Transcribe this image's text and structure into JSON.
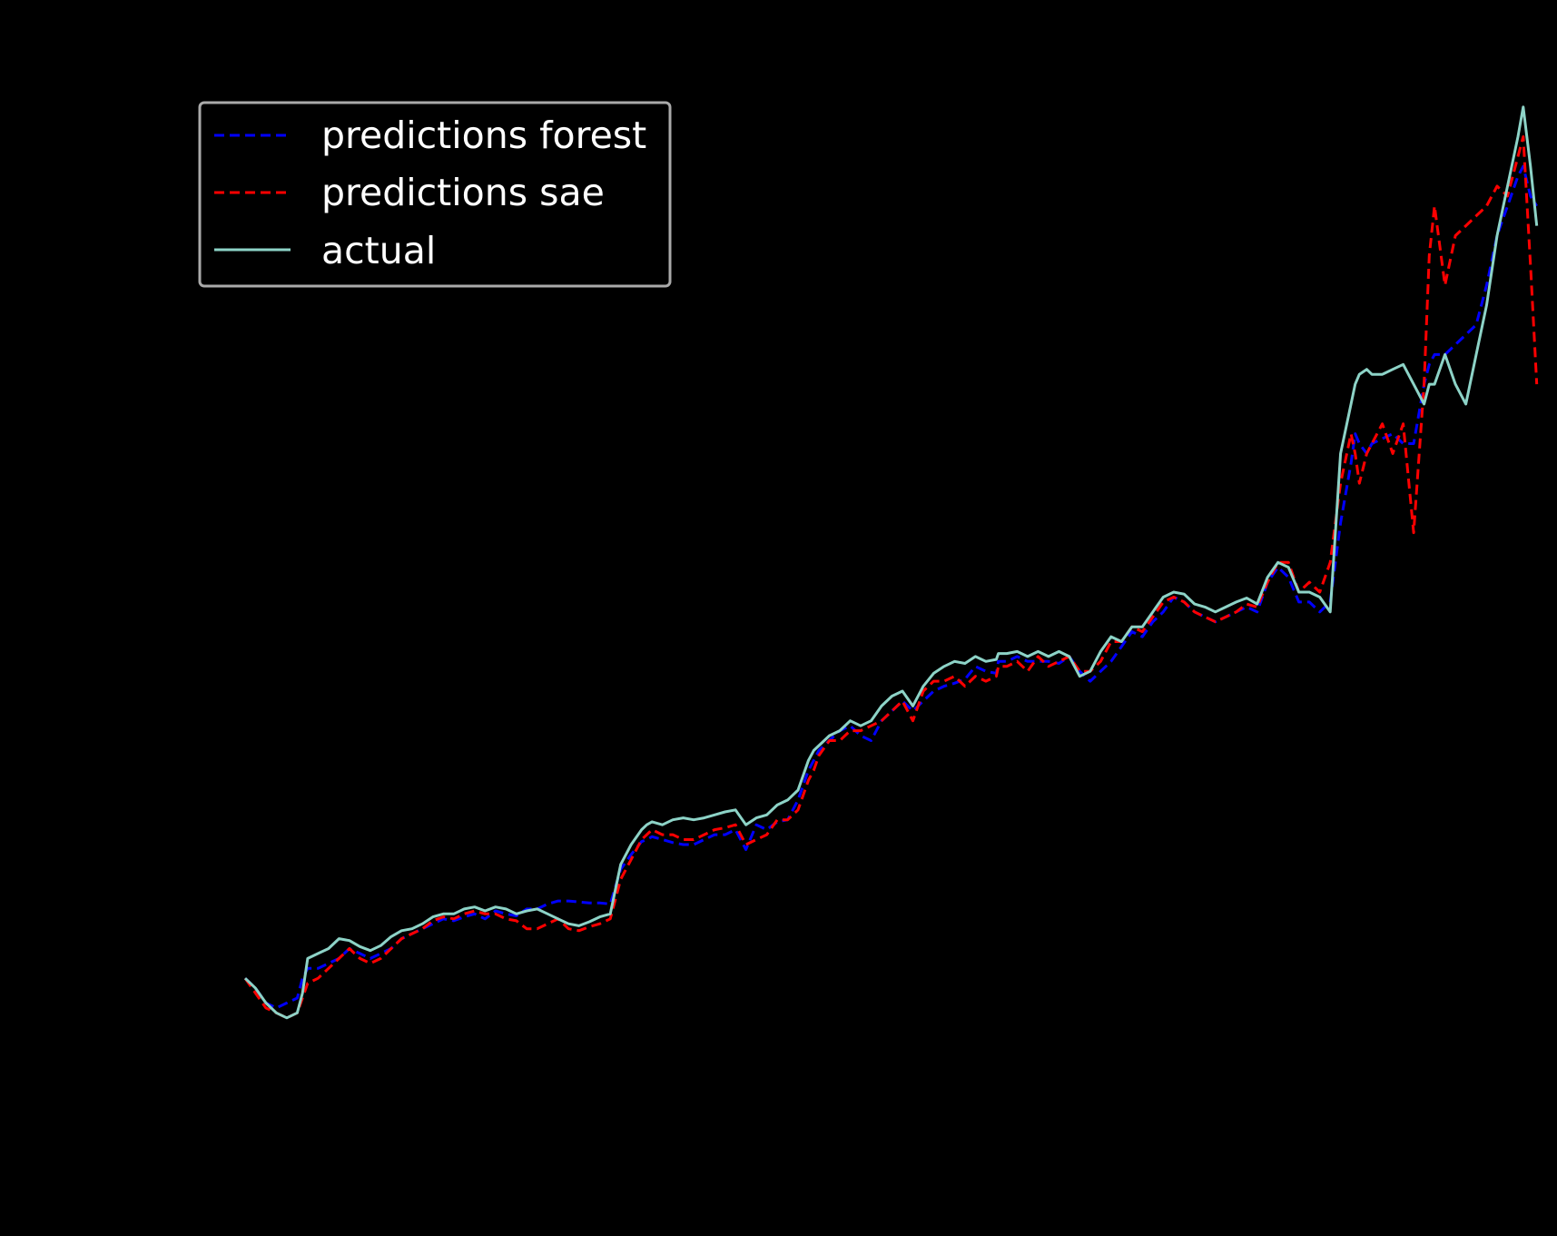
{
  "chart_data": {
    "type": "line",
    "title": "",
    "xlabel": "",
    "ylabel": "",
    "grid": false,
    "legend_position": "upper-left",
    "background": "#000000",
    "xlim": [
      -60,
      1240
    ],
    "ylim": [
      -0.02,
      1.0
    ],
    "series": [
      {
        "name": "predictions forest",
        "style": "dashed",
        "color": "#0000ff",
        "x": [
          0,
          10,
          20,
          30,
          40,
          50,
          55,
          60,
          70,
          80,
          90,
          100,
          110,
          120,
          130,
          140,
          150,
          160,
          170,
          180,
          190,
          200,
          210,
          220,
          230,
          240,
          250,
          260,
          270,
          280,
          290,
          300,
          310,
          320,
          330,
          340,
          350,
          360,
          370,
          380,
          385,
          390,
          400,
          410,
          420,
          430,
          440,
          450,
          460,
          470,
          480,
          490,
          500,
          510,
          520,
          530,
          540,
          545,
          550,
          560,
          570,
          580,
          590,
          600,
          610,
          620,
          630,
          640,
          650,
          660,
          670,
          680,
          690,
          700,
          710,
          720,
          722,
          730,
          740,
          750,
          760,
          770,
          780,
          790,
          800,
          810,
          820,
          830,
          840,
          850,
          860,
          870,
          880,
          890,
          900,
          910,
          920,
          930,
          940,
          950,
          960,
          970,
          980,
          990,
          1000,
          1010,
          1020,
          1030,
          1040,
          1050,
          1060,
          1064,
          1068,
          1075,
          1080,
          1090,
          1100,
          1110,
          1120,
          1130,
          1135,
          1140,
          1150,
          1160,
          1170,
          1180,
          1190,
          1200,
          1210,
          1220,
          1225,
          1232,
          1238
        ],
        "y": [
          0.1,
          0.09,
          0.075,
          0.07,
          0.075,
          0.08,
          0.1,
          0.11,
          0.11,
          0.115,
          0.12,
          0.13,
          0.125,
          0.12,
          0.125,
          0.13,
          0.14,
          0.145,
          0.15,
          0.155,
          0.16,
          0.158,
          0.162,
          0.165,
          0.16,
          0.168,
          0.165,
          0.163,
          0.17,
          0.17,
          0.175,
          0.178,
          0.178,
          0.177,
          0.176,
          0.176,
          0.175,
          0.21,
          0.225,
          0.238,
          0.24,
          0.243,
          0.24,
          0.237,
          0.235,
          0.235,
          0.24,
          0.245,
          0.245,
          0.25,
          0.23,
          0.255,
          0.25,
          0.258,
          0.26,
          0.28,
          0.31,
          0.32,
          0.33,
          0.34,
          0.35,
          0.355,
          0.345,
          0.34,
          0.36,
          0.37,
          0.38,
          0.37,
          0.38,
          0.39,
          0.395,
          0.398,
          0.402,
          0.415,
          0.41,
          0.408,
          0.42,
          0.42,
          0.425,
          0.42,
          0.42,
          0.42,
          0.418,
          0.425,
          0.41,
          0.4,
          0.41,
          0.42,
          0.435,
          0.45,
          0.445,
          0.46,
          0.47,
          0.485,
          0.48,
          0.47,
          0.465,
          0.46,
          0.465,
          0.47,
          0.475,
          0.47,
          0.5,
          0.515,
          0.505,
          0.48,
          0.48,
          0.47,
          0.48,
          0.56,
          0.62,
          0.65,
          0.64,
          0.63,
          0.64,
          0.645,
          0.65,
          0.64,
          0.64,
          0.7,
          0.72,
          0.73,
          0.73,
          0.74,
          0.75,
          0.76,
          0.8,
          0.85,
          0.88,
          0.91,
          0.92,
          0.89,
          0.88
        ],
        "values_note": ""
      },
      {
        "name": "predictions sae",
        "style": "dashed",
        "color": "#ff0000",
        "x": [
          0,
          10,
          20,
          30,
          40,
          50,
          55,
          60,
          70,
          80,
          90,
          100,
          110,
          120,
          130,
          140,
          150,
          160,
          170,
          180,
          190,
          200,
          210,
          220,
          230,
          240,
          250,
          260,
          270,
          280,
          290,
          300,
          310,
          320,
          330,
          340,
          350,
          360,
          370,
          380,
          385,
          390,
          400,
          410,
          420,
          430,
          440,
          450,
          460,
          470,
          480,
          490,
          500,
          510,
          520,
          530,
          540,
          545,
          550,
          560,
          570,
          580,
          590,
          600,
          610,
          620,
          630,
          640,
          650,
          660,
          670,
          680,
          690,
          700,
          710,
          720,
          722,
          730,
          740,
          750,
          760,
          770,
          780,
          790,
          800,
          810,
          820,
          830,
          840,
          850,
          860,
          870,
          880,
          890,
          900,
          910,
          920,
          930,
          940,
          950,
          960,
          970,
          980,
          990,
          1000,
          1010,
          1020,
          1030,
          1040,
          1050,
          1060,
          1064,
          1068,
          1075,
          1080,
          1090,
          1100,
          1110,
          1120,
          1130,
          1135,
          1140,
          1150,
          1160,
          1170,
          1180,
          1190,
          1200,
          1210,
          1220,
          1225,
          1232,
          1238
        ],
        "y": [
          0.1,
          0.085,
          0.07,
          0.065,
          0.06,
          0.065,
          0.08,
          0.095,
          0.1,
          0.11,
          0.12,
          0.13,
          0.12,
          0.115,
          0.12,
          0.13,
          0.14,
          0.145,
          0.15,
          0.158,
          0.162,
          0.16,
          0.165,
          0.168,
          0.165,
          0.165,
          0.16,
          0.158,
          0.15,
          0.15,
          0.155,
          0.16,
          0.15,
          0.148,
          0.152,
          0.155,
          0.16,
          0.2,
          0.22,
          0.24,
          0.245,
          0.25,
          0.245,
          0.245,
          0.24,
          0.24,
          0.245,
          0.25,
          0.252,
          0.255,
          0.235,
          0.24,
          0.245,
          0.26,
          0.26,
          0.27,
          0.3,
          0.31,
          0.325,
          0.34,
          0.34,
          0.35,
          0.35,
          0.355,
          0.36,
          0.37,
          0.38,
          0.36,
          0.39,
          0.4,
          0.4,
          0.405,
          0.395,
          0.405,
          0.4,
          0.405,
          0.415,
          0.415,
          0.42,
          0.41,
          0.425,
          0.415,
          0.42,
          0.425,
          0.41,
          0.41,
          0.42,
          0.44,
          0.44,
          0.455,
          0.45,
          0.465,
          0.48,
          0.485,
          0.48,
          0.47,
          0.465,
          0.46,
          0.465,
          0.47,
          0.478,
          0.475,
          0.5,
          0.52,
          0.52,
          0.49,
          0.5,
          0.49,
          0.52,
          0.6,
          0.65,
          0.63,
          0.6,
          0.63,
          0.64,
          0.66,
          0.63,
          0.66,
          0.55,
          0.7,
          0.83,
          0.88,
          0.8,
          0.85,
          0.86,
          0.87,
          0.88,
          0.9,
          0.89,
          0.93,
          0.95,
          0.82,
          0.7
        ],
        "values_note": ""
      },
      {
        "name": "actual",
        "style": "solid",
        "color": "#8dd3c7",
        "x": [
          0,
          10,
          20,
          30,
          40,
          50,
          55,
          60,
          70,
          80,
          90,
          100,
          110,
          120,
          130,
          140,
          150,
          160,
          170,
          180,
          190,
          200,
          210,
          220,
          230,
          240,
          250,
          260,
          270,
          280,
          290,
          300,
          310,
          320,
          330,
          340,
          350,
          360,
          370,
          380,
          385,
          390,
          400,
          410,
          420,
          430,
          440,
          450,
          460,
          470,
          480,
          490,
          500,
          510,
          520,
          530,
          540,
          545,
          550,
          560,
          570,
          580,
          590,
          600,
          610,
          620,
          630,
          640,
          650,
          660,
          670,
          680,
          690,
          700,
          710,
          720,
          722,
          730,
          740,
          750,
          760,
          770,
          780,
          790,
          800,
          810,
          820,
          830,
          840,
          850,
          860,
          870,
          880,
          890,
          900,
          910,
          920,
          930,
          940,
          950,
          960,
          970,
          980,
          990,
          1000,
          1010,
          1020,
          1030,
          1040,
          1050,
          1060,
          1064,
          1068,
          1075,
          1080,
          1090,
          1100,
          1110,
          1120,
          1130,
          1135,
          1140,
          1150,
          1160,
          1170,
          1180,
          1190,
          1200,
          1210,
          1220,
          1225,
          1232,
          1238
        ],
        "y": [
          0.1,
          0.09,
          0.075,
          0.065,
          0.06,
          0.065,
          0.085,
          0.12,
          0.125,
          0.13,
          0.14,
          0.138,
          0.132,
          0.128,
          0.133,
          0.142,
          0.148,
          0.15,
          0.155,
          0.162,
          0.165,
          0.165,
          0.17,
          0.172,
          0.168,
          0.172,
          0.17,
          0.165,
          0.168,
          0.17,
          0.165,
          0.16,
          0.155,
          0.153,
          0.157,
          0.162,
          0.165,
          0.215,
          0.235,
          0.25,
          0.255,
          0.258,
          0.255,
          0.26,
          0.262,
          0.26,
          0.262,
          0.265,
          0.268,
          0.27,
          0.255,
          0.262,
          0.265,
          0.275,
          0.28,
          0.29,
          0.32,
          0.33,
          0.335,
          0.345,
          0.35,
          0.36,
          0.355,
          0.36,
          0.375,
          0.385,
          0.39,
          0.375,
          0.395,
          0.408,
          0.415,
          0.42,
          0.418,
          0.425,
          0.42,
          0.422,
          0.428,
          0.428,
          0.43,
          0.425,
          0.43,
          0.425,
          0.43,
          0.425,
          0.405,
          0.41,
          0.43,
          0.445,
          0.44,
          0.455,
          0.455,
          0.47,
          0.485,
          0.49,
          0.488,
          0.478,
          0.475,
          0.47,
          0.475,
          0.48,
          0.484,
          0.478,
          0.505,
          0.52,
          0.515,
          0.49,
          0.49,
          0.485,
          0.47,
          0.63,
          0.68,
          0.7,
          0.71,
          0.715,
          0.71,
          0.71,
          0.715,
          0.72,
          0.7,
          0.68,
          0.7,
          0.7,
          0.73,
          0.7,
          0.68,
          0.73,
          0.78,
          0.85,
          0.9,
          0.95,
          0.98,
          0.92,
          0.86
        ],
        "values_note": ""
      }
    ]
  }
}
